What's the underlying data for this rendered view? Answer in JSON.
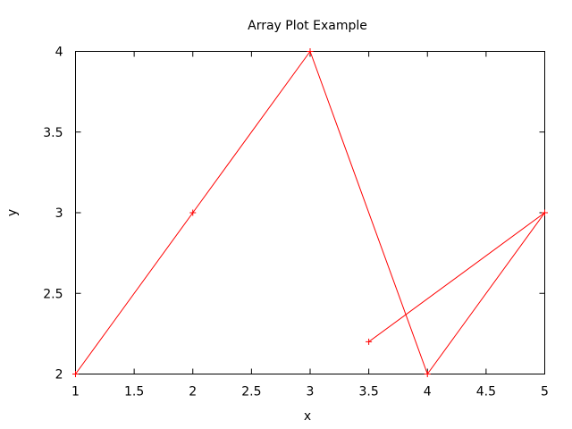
{
  "chart_data": {
    "type": "line",
    "title": "Array Plot Example",
    "xlabel": "x",
    "ylabel": "y",
    "xlim": [
      1,
      5
    ],
    "ylim": [
      2,
      4
    ],
    "xticks": [
      1,
      1.5,
      2,
      2.5,
      3,
      3.5,
      4,
      4.5,
      5
    ],
    "yticks": [
      2,
      2.5,
      3,
      3.5,
      4
    ],
    "grid": false,
    "series": [
      {
        "color": "#ff0000",
        "marker": "plus",
        "x": [
          1,
          2,
          3,
          4,
          5,
          3.5
        ],
        "y": [
          2,
          3,
          4,
          2,
          3,
          2.2
        ]
      }
    ]
  }
}
